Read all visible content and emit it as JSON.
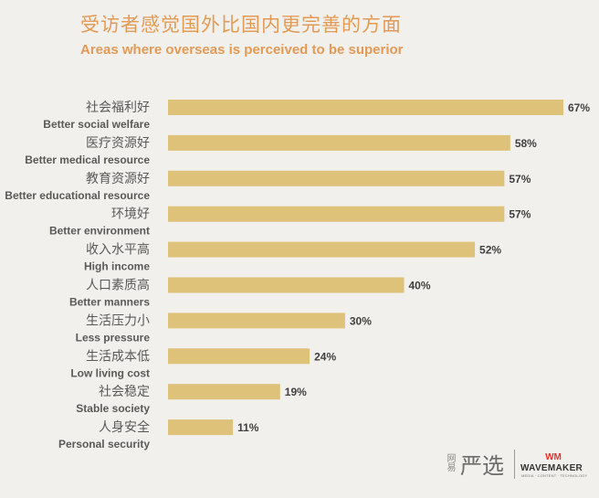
{
  "chart_data": {
    "type": "bar",
    "orientation": "horizontal",
    "title": "受访者感觉国外比国内更完善的方面",
    "subtitle": "Areas where overseas is perceived to be superior",
    "xlim": [
      0,
      67
    ],
    "value_suffix": "%",
    "bar_color": "#dfc27a",
    "categories": [
      {
        "cn": "社会福利好",
        "en": "Better social welfare",
        "value": 67
      },
      {
        "cn": "医疗资源好",
        "en": "Better medical resource",
        "value": 58
      },
      {
        "cn": "教育资源好",
        "en": "Better educational resource",
        "value": 57
      },
      {
        "cn": "环境好",
        "en": "Better environment",
        "value": 57
      },
      {
        "cn": "收入水平高",
        "en": "High income",
        "value": 52
      },
      {
        "cn": "人口素质高",
        "en": "Better manners",
        "value": 40
      },
      {
        "cn": "生活压力小",
        "en": "Less pressure",
        "value": 30
      },
      {
        "cn": "生活成本低",
        "en": "Low living cost",
        "value": 24
      },
      {
        "cn": "社会稳定",
        "en": "Stable society",
        "value": 19
      },
      {
        "cn": "人身安全",
        "en": "Personal security",
        "value": 11
      }
    ]
  },
  "logos": {
    "yanxuan_small": "网易",
    "yanxuan": "严选",
    "wavemaker_mark": "WM",
    "wavemaker_name": "WAVEMAKER",
    "wavemaker_tagline": "MEDIA · CONTENT · TECHNOLOGY"
  },
  "colors": {
    "title": "#e39a55",
    "background": "#f2f0ec",
    "wavemaker_red": "#e2342b"
  }
}
